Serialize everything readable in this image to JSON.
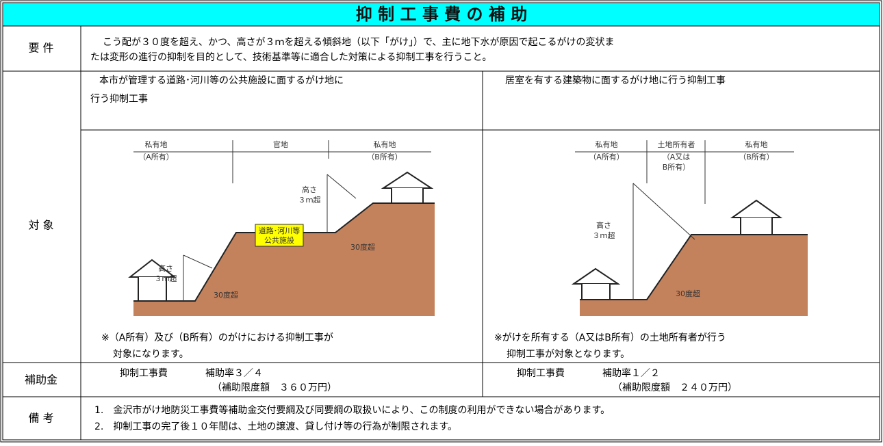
{
  "title": "抑 制 工 事 費 の 補 助",
  "requirements": {
    "label": "要 件",
    "lines": [
      "こう配が３０度を超え、かつ、高さが３ｍを超える傾斜地（以下「がけ」）で、主に地下水が原因で起こるがけの変状ま",
      "たは変形の進行の抑制を目的として、技術基準等に適合した対策による抑制工事を行うこと。"
    ]
  },
  "target": {
    "label": "対 象",
    "columns": [
      {
        "heading": [
          "本市が管理する道路･河川等の公共施設に面するがけ地に",
          "行う抑制工事"
        ],
        "diagram_labels": [
          "私有地",
          "（A所有）",
          "官地",
          "私有地",
          "（B所有）",
          "高さ",
          "３ｍ超",
          "高さ",
          "３ｍ超",
          "道路･河川等",
          "公共施設",
          "30度超",
          "30度超"
        ],
        "note": [
          "※（A所有）及び（B所有）のがけにおける抑制工事が",
          "対象になります。"
        ]
      },
      {
        "heading": [
          "居室を有する建築物に面するがけ地に行う抑制工事"
        ],
        "diagram_labels": [
          "私有地",
          "（A所有）",
          "土地所有者",
          "（A又は",
          "B所有）",
          "私有地",
          "（B所有）",
          "高さ",
          "３ｍ超",
          "30度超"
        ],
        "note": [
          "※がけを所有する（A又はB所有）の土地所有者が行う",
          "抑制工事が対象となります。"
        ]
      }
    ]
  },
  "subsidy": {
    "label": "補助金",
    "columns": [
      {
        "cost": "抑制工事費",
        "rate": "補助率３／４",
        "limit": "（補助限度額　３６０万円）"
      },
      {
        "cost": "抑制工事費",
        "rate": "補助率１／２",
        "limit": "（補助限度額　２４０万円）"
      }
    ]
  },
  "remarks": {
    "label": "備 考",
    "items": [
      "1.　金沢市がけ地防災工事費等補助金交付要綱及び同要綱の取扱いにより、この制度の利用ができない場合があります。",
      "2.　抑制工事の完了後１０年間は、土地の譲渡、貸し付け等の行為が制限されます。"
    ]
  }
}
